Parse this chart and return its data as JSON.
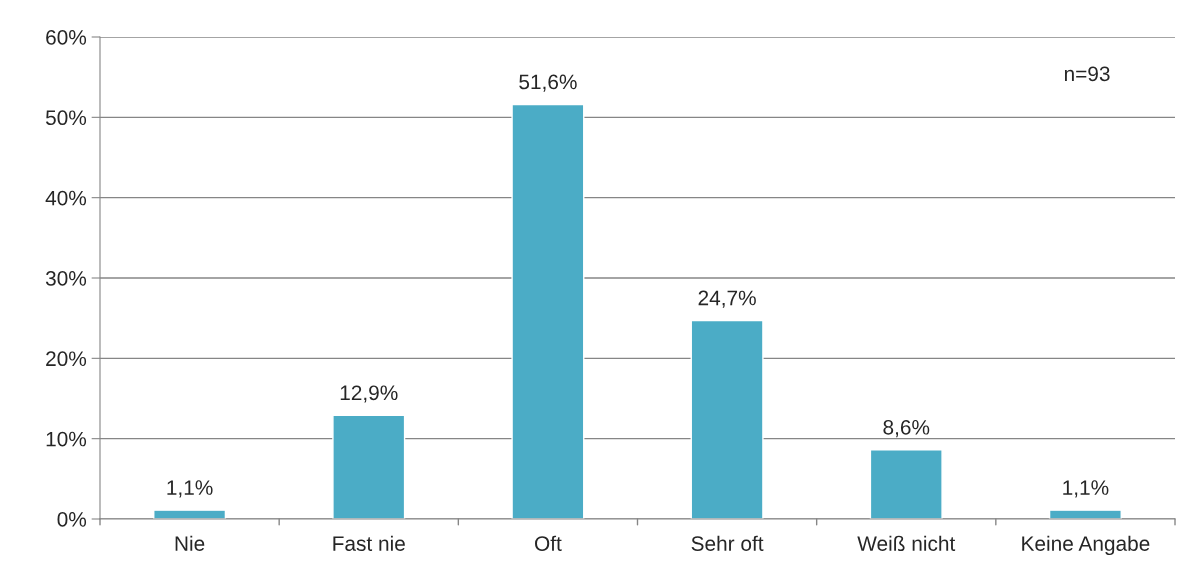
{
  "chart_data": {
    "type": "bar",
    "categories": [
      "Nie",
      "Fast nie",
      "Oft",
      "Sehr oft",
      "Weiß nicht",
      "Keine Angabe"
    ],
    "values": [
      1.1,
      12.9,
      51.6,
      24.7,
      8.6,
      1.1
    ],
    "value_labels": [
      "1,1%",
      "12,9%",
      "51,6%",
      "24,7%",
      "8,6%",
      "1,1%"
    ],
    "color": "#4bacc6",
    "ylim": [
      0,
      60
    ],
    "yticks": [
      {
        "value": 0,
        "label": "0%"
      },
      {
        "value": 10,
        "label": "10%"
      },
      {
        "value": 20,
        "label": "20%"
      },
      {
        "value": 30,
        "label": "30%"
      },
      {
        "value": 40,
        "label": "40%"
      },
      {
        "value": 50,
        "label": "50%"
      },
      {
        "value": 60,
        "label": "60%"
      }
    ],
    "grid": "y",
    "legend": false,
    "annotations": [
      "n=93"
    ]
  }
}
